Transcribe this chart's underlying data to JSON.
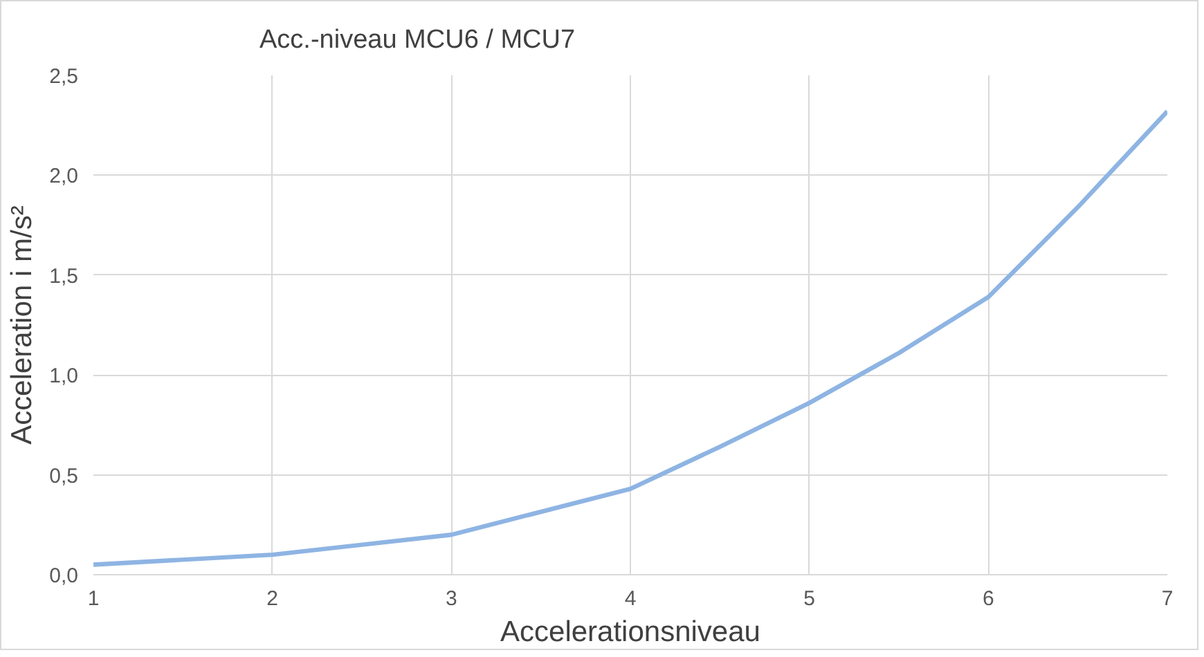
{
  "chart_data": {
    "type": "line",
    "title": "Acc.-niveau MCU6 / MCU7",
    "xlabel": "Accelerationsniveau",
    "ylabel": "Acceleration i m/s²",
    "x": [
      1,
      2,
      3,
      4,
      4.5,
      5,
      5.5,
      6,
      6.5,
      7
    ],
    "series": [
      {
        "color": "#8eb4e3",
        "values": [
          0.05,
          0.1,
          0.2,
          0.43,
          0.64,
          0.86,
          1.11,
          1.39,
          1.84,
          2.32
        ]
      }
    ],
    "xlim": [
      1,
      7
    ],
    "xticks": [
      1,
      2,
      3,
      4,
      5,
      6,
      7
    ],
    "ylim": [
      0,
      2.5
    ],
    "yticks": [
      {
        "value": 0,
        "label": "0,0"
      },
      {
        "value": 0.5,
        "label": "0,5"
      },
      {
        "value": 1,
        "label": "1,0"
      },
      {
        "value": 1.5,
        "label": "1,5"
      },
      {
        "value": 2,
        "label": "2,0"
      },
      {
        "value": 2.5,
        "label": "2,5"
      }
    ],
    "grid": true,
    "marker": "none",
    "line_style": "solid"
  }
}
